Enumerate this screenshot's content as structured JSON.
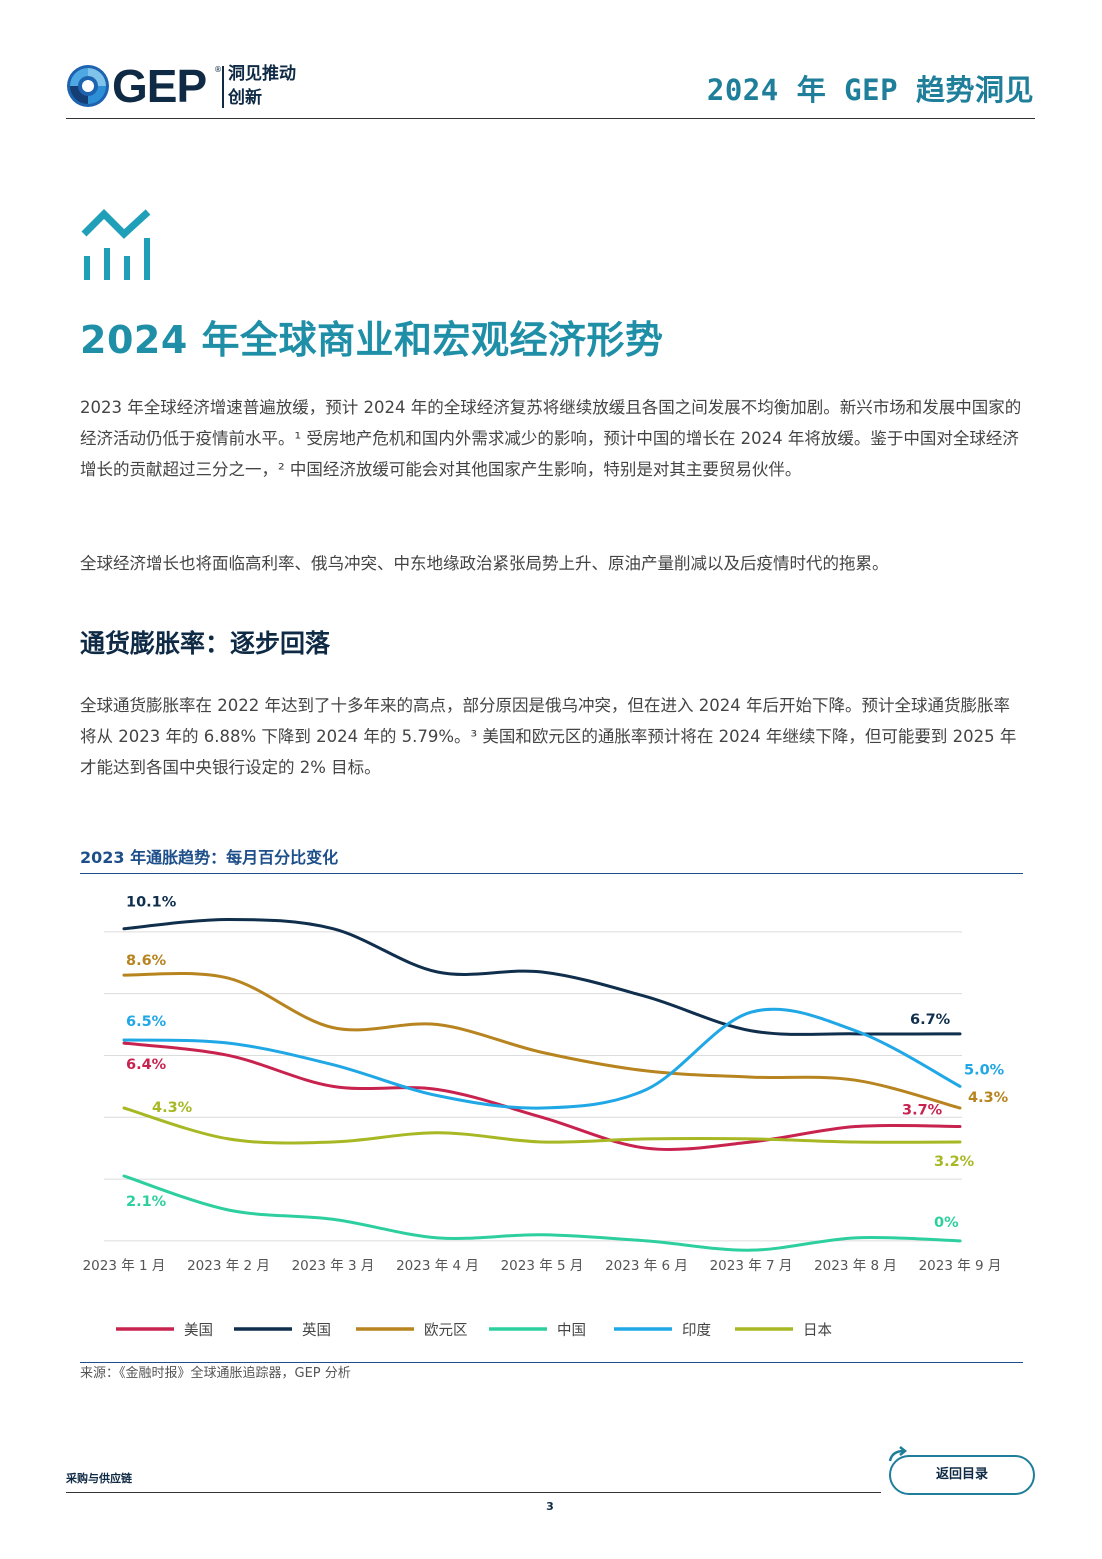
{
  "header": {
    "brand": "GEP",
    "brand_reg": "®",
    "tagline_line1": "洞见推动",
    "tagline_line2": "创新",
    "report_title": "2024 年 GEP 趋势洞见"
  },
  "section": {
    "title": "2024 年全球商业和宏观经济形势",
    "para1": "2023 年全球经济增速普遍放缓，预计 2024 年的全球经济复苏将继续放缓且各国之间发展不均衡加剧。新兴市场和发展中国家的经济活动仍低于疫情前水平。¹ 受房地产危机和国内外需求减少的影响，预计中国的增长在 2024 年将放缓。鉴于中国对全球经济增长的贡献超过三分之一，² 中国经济放缓可能会对其他国家产生影响，特别是对其主要贸易伙伴。",
    "para2": "全球经济增长也将面临高利率、俄乌冲突、中东地缘政治紧张局势上升、原油产量削减以及后疫情时代的拖累。",
    "subheading": "通货膨胀率：逐步回落",
    "para3": "全球通货膨胀率在 2022 年达到了十多年来的高点，部分原因是俄乌冲突，但在进入 2024 年后开始下降。预计全球通货膨胀率将从 2023 年的 6.88% 下降到 2024 年的 5.79%。³ 美国和欧元区的通胀率预计将在 2024 年继续下降，但可能要到 2025 年才能达到各国中央银行设定的 2% 目标。"
  },
  "chart_data": {
    "type": "line",
    "title": "2023 年通胀趋势：每月百分比变化",
    "categories": [
      "2023 年 1 月",
      "2023 年 2 月",
      "2023 年 3 月",
      "2023 年 4 月",
      "2023 年 5 月",
      "2023 年 6 月",
      "2023 年 7 月",
      "2023 年 8 月",
      "2023 年 9 月"
    ],
    "ylim": [
      -0.1,
      10.9
    ],
    "grid": true,
    "legend_position": "bottom",
    "series": [
      {
        "name": "美国",
        "color": "#c8234f",
        "values": [
          6.4,
          6.0,
          5.0,
          4.9,
          4.0,
          3.0,
          3.2,
          3.7,
          3.7
        ],
        "start_label": "6.4%",
        "end_label": "3.7%"
      },
      {
        "name": "英国",
        "color": "#0f2f4d",
        "values": [
          10.1,
          10.4,
          10.1,
          8.7,
          8.7,
          7.9,
          6.8,
          6.7,
          6.7
        ],
        "start_label": "10.1%",
        "end_label": "6.7%"
      },
      {
        "name": "欧元区",
        "color": "#b7841f",
        "values": [
          8.6,
          8.5,
          6.9,
          7.0,
          6.1,
          5.5,
          5.3,
          5.2,
          4.3
        ],
        "start_label": "8.6%",
        "end_label": "4.3%"
      },
      {
        "name": "中国",
        "color": "#2ecf9f",
        "values": [
          2.1,
          1.0,
          0.7,
          0.1,
          0.2,
          0.0,
          -0.3,
          0.1,
          0.0
        ],
        "start_label": "2.1%",
        "end_label": "0%"
      },
      {
        "name": "印度",
        "color": "#1fa7e6",
        "values": [
          6.5,
          6.4,
          5.7,
          4.7,
          4.3,
          4.9,
          7.4,
          6.8,
          5.0
        ],
        "start_label": "6.5%",
        "end_label": "5.0%"
      },
      {
        "name": "日本",
        "color": "#a8b824",
        "values": [
          4.3,
          3.3,
          3.2,
          3.5,
          3.2,
          3.3,
          3.3,
          3.2,
          3.2
        ],
        "start_label": "4.3%",
        "end_label": "3.2%"
      }
    ],
    "source": "来源：《金融时报》全球通胀追踪器，GEP 分析"
  },
  "footer": {
    "label": "采购与供应链",
    "page_number": "3",
    "back_button": "返回目录"
  }
}
